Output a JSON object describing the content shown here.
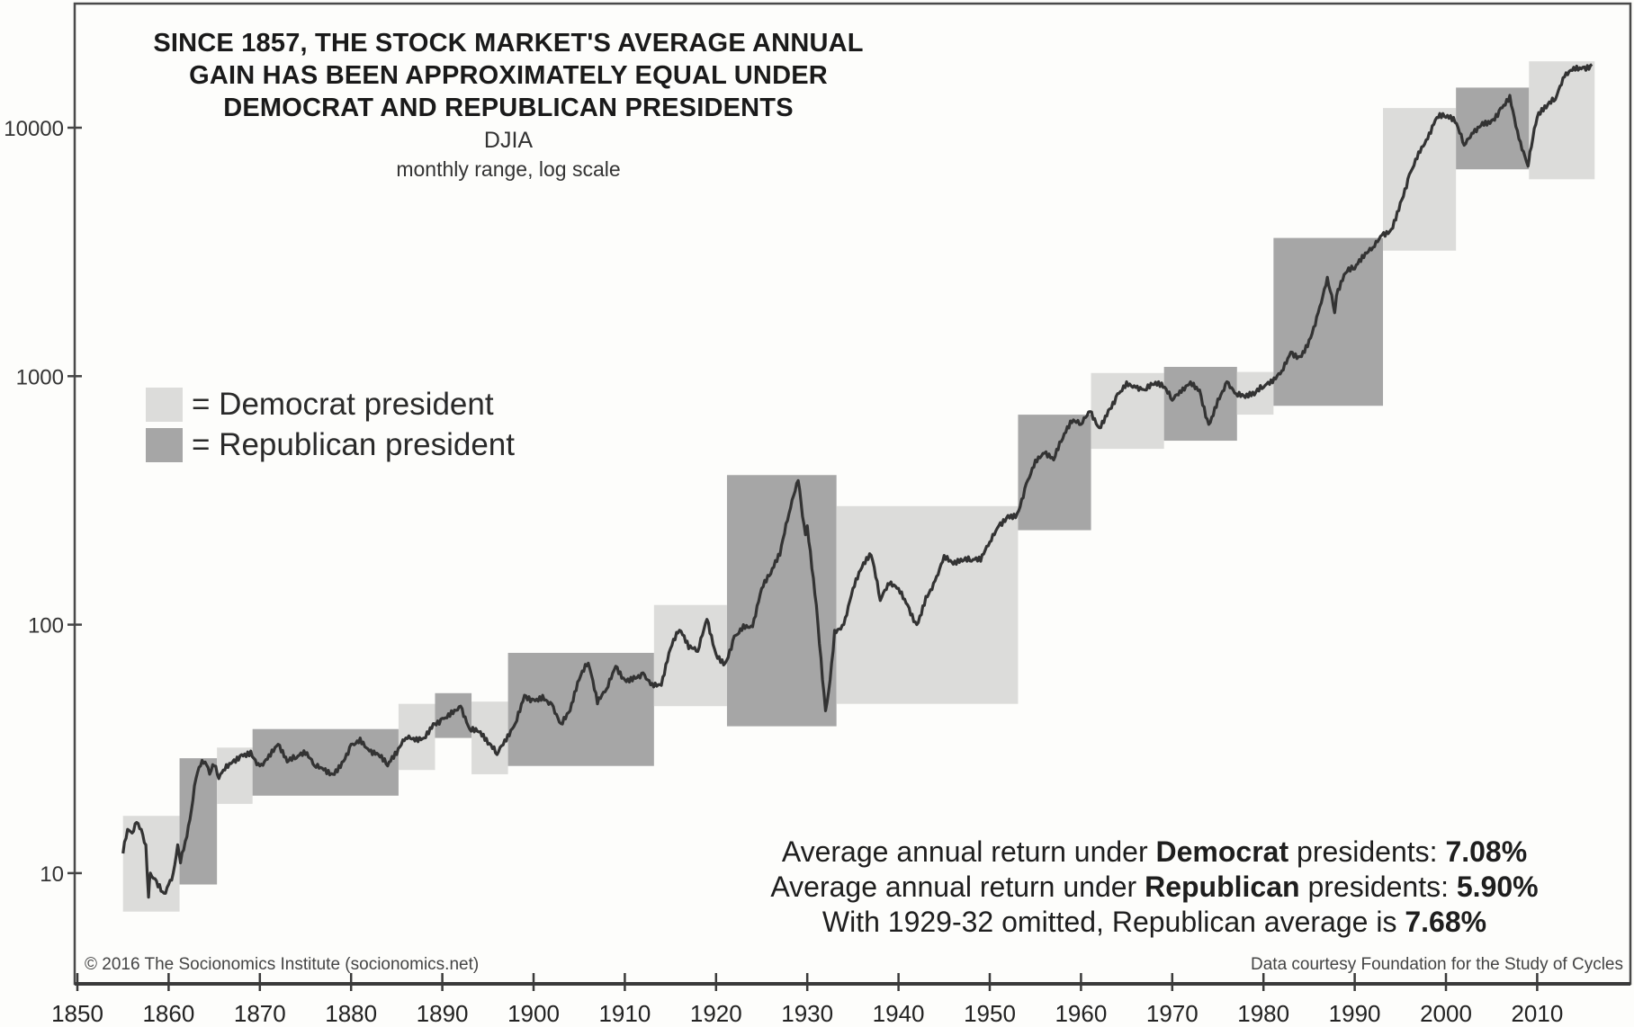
{
  "chart_data": {
    "type": "line",
    "title": "SINCE 1857, THE STOCK MARKET'S AVERAGE ANNUAL GAIN HAS BEEN APPROXIMATELY EQUAL UNDER DEMOCRAT AND REPUBLICAN PRESIDENTS",
    "title_lines": [
      "SINCE 1857, THE STOCK MARKET'S AVERAGE ANNUAL",
      "GAIN HAS BEEN APPROXIMATELY EQUAL UNDER",
      "DEMOCRAT AND REPUBLICAN PRESIDENTS"
    ],
    "subtitle": "DJIA",
    "subtitle2": "monthly range, log scale",
    "xlabel": "",
    "ylabel": "",
    "y_scale": "log",
    "ylim": [
      4,
      22000
    ],
    "xlim": [
      1850,
      2017
    ],
    "grid": false,
    "y_ticks": [
      {
        "value": 10,
        "label": "10"
      },
      {
        "value": 100,
        "label": "100"
      },
      {
        "value": 1000,
        "label": "1000"
      },
      {
        "value": 10000,
        "label": "10000"
      }
    ],
    "x_ticks": [
      {
        "value": 1850,
        "label": "1850"
      },
      {
        "value": 1860,
        "label": "1860"
      },
      {
        "value": 1870,
        "label": "1870"
      },
      {
        "value": 1880,
        "label": "1880"
      },
      {
        "value": 1890,
        "label": "1890"
      },
      {
        "value": 1900,
        "label": "1900"
      },
      {
        "value": 1910,
        "label": "1910"
      },
      {
        "value": 1920,
        "label": "1920"
      },
      {
        "value": 1930,
        "label": "1930"
      },
      {
        "value": 1940,
        "label": "1940"
      },
      {
        "value": 1950,
        "label": "1950"
      },
      {
        "value": 1960,
        "label": "1960"
      },
      {
        "value": 1970,
        "label": "1970"
      },
      {
        "value": 1980,
        "label": "1980"
      },
      {
        "value": 1990,
        "label": "1990"
      },
      {
        "value": 2000,
        "label": "2000"
      },
      {
        "value": 2010,
        "label": "2010"
      }
    ],
    "legend": {
      "placement": "middle-left",
      "entries": [
        {
          "label": "= Democrat president",
          "party": "D",
          "color": "#dcdcda"
        },
        {
          "label": "= Republican president",
          "party": "R",
          "color": "#a6a6a6"
        }
      ]
    },
    "presidential_terms": [
      {
        "start": 1855,
        "end": 1861.2,
        "party": "D",
        "low": 7,
        "high": 17
      },
      {
        "start": 1861.2,
        "end": 1865.3,
        "party": "R",
        "low": 9,
        "high": 29
      },
      {
        "start": 1865.3,
        "end": 1869.2,
        "party": "D",
        "low": 19,
        "high": 32
      },
      {
        "start": 1869.2,
        "end": 1885.2,
        "party": "R",
        "low": 20.5,
        "high": 38
      },
      {
        "start": 1885.2,
        "end": 1889.2,
        "party": "D",
        "low": 26,
        "high": 48
      },
      {
        "start": 1889.2,
        "end": 1893.2,
        "party": "R",
        "low": 35,
        "high": 53
      },
      {
        "start": 1893.2,
        "end": 1897.2,
        "party": "D",
        "low": 25,
        "high": 49
      },
      {
        "start": 1897.2,
        "end": 1913.2,
        "party": "R",
        "low": 27,
        "high": 77
      },
      {
        "start": 1913.2,
        "end": 1921.2,
        "party": "D",
        "low": 47,
        "high": 120
      },
      {
        "start": 1921.2,
        "end": 1933.2,
        "party": "R",
        "low": 39,
        "high": 400
      },
      {
        "start": 1933.2,
        "end": 1953.1,
        "party": "D",
        "low": 48,
        "high": 300
      },
      {
        "start": 1953.1,
        "end": 1961.1,
        "party": "R",
        "low": 240,
        "high": 700
      },
      {
        "start": 1961.1,
        "end": 1969.1,
        "party": "D",
        "low": 510,
        "high": 1030
      },
      {
        "start": 1969.1,
        "end": 1977.1,
        "party": "R",
        "low": 550,
        "high": 1090
      },
      {
        "start": 1977.1,
        "end": 1981.1,
        "party": "D",
        "low": 700,
        "high": 1040
      },
      {
        "start": 1981.1,
        "end": 1993.1,
        "party": "R",
        "low": 760,
        "high": 3600
      },
      {
        "start": 1993.1,
        "end": 2001.1,
        "party": "D",
        "low": 3200,
        "high": 12000
      },
      {
        "start": 2001.1,
        "end": 2009.1,
        "party": "R",
        "low": 6800,
        "high": 14500
      },
      {
        "start": 2009.1,
        "end": 2016.3,
        "party": "D",
        "low": 6200,
        "high": 18500
      }
    ],
    "series": [
      {
        "name": "DJIA",
        "x": [
          1855,
          1855.5,
          1856,
          1856.5,
          1857,
          1857.5,
          1857.8,
          1858,
          1858.5,
          1859,
          1859.5,
          1860,
          1860.5,
          1861,
          1861.3,
          1862,
          1862.5,
          1863,
          1863.5,
          1864,
          1864.5,
          1865,
          1865.5,
          1866,
          1867,
          1868,
          1869,
          1870,
          1871,
          1872,
          1873,
          1874,
          1875,
          1876,
          1877,
          1878,
          1879,
          1880,
          1881,
          1882,
          1883,
          1884,
          1885,
          1886,
          1887,
          1888,
          1889,
          1890,
          1891,
          1892,
          1893,
          1894,
          1895,
          1896,
          1897,
          1898,
          1899,
          1900,
          1901,
          1902,
          1903,
          1904,
          1905,
          1906,
          1907,
          1908,
          1909,
          1910,
          1911,
          1912,
          1913,
          1914,
          1915,
          1916,
          1917,
          1918,
          1919,
          1920,
          1921,
          1922,
          1923,
          1924,
          1925,
          1926,
          1927,
          1928,
          1929,
          1929.8,
          1930,
          1931,
          1932,
          1932.5,
          1933,
          1934,
          1935,
          1936,
          1937,
          1938,
          1939,
          1940,
          1941,
          1942,
          1943,
          1944,
          1945,
          1946,
          1947,
          1948,
          1949,
          1950,
          1951,
          1952,
          1953,
          1954,
          1955,
          1956,
          1957,
          1958,
          1959,
          1960,
          1961,
          1962,
          1963,
          1964,
          1965,
          1966,
          1967,
          1968,
          1969,
          1970,
          1971,
          1972,
          1973,
          1974,
          1975,
          1976,
          1977,
          1978,
          1979,
          1980,
          1981,
          1982,
          1983,
          1984,
          1985,
          1986,
          1987,
          1987.8,
          1988,
          1989,
          1990,
          1991,
          1992,
          1993,
          1994,
          1995,
          1996,
          1997,
          1998,
          1999,
          2000,
          2001,
          2002,
          2003,
          2004,
          2005,
          2006,
          2007,
          2008,
          2009,
          2009.2,
          2010,
          2011,
          2012,
          2013,
          2014,
          2015,
          2016
        ],
        "values": [
          12,
          15,
          14.5,
          16,
          15,
          13,
          8,
          10,
          9.5,
          9,
          8.3,
          9,
          10,
          13,
          11,
          14,
          18,
          24,
          27,
          28,
          25,
          27,
          24,
          26,
          28,
          30,
          31,
          27,
          30,
          33,
          28,
          29,
          30,
          27,
          26,
          25,
          28,
          33,
          35,
          31,
          30,
          27,
          30,
          35,
          34,
          35,
          40,
          42,
          45,
          47,
          38,
          37,
          33,
          30,
          34,
          40,
          52,
          50,
          52,
          48,
          40,
          45,
          60,
          70,
          48,
          55,
          68,
          60,
          62,
          64,
          58,
          57,
          80,
          95,
          80,
          78,
          105,
          76,
          70,
          90,
          100,
          98,
          140,
          160,
          190,
          280,
          380,
          230,
          250,
          120,
          45,
          60,
          95,
          100,
          140,
          170,
          190,
          125,
          145,
          140,
          120,
          100,
          130,
          150,
          190,
          175,
          180,
          180,
          180,
          215,
          250,
          275,
          280,
          370,
          460,
          490,
          460,
          560,
          650,
          640,
          720,
          620,
          730,
          850,
          950,
          900,
          880,
          925,
          900,
          800,
          860,
          950,
          880,
          640,
          810,
          950,
          850,
          820,
          840,
          900,
          940,
          1050,
          1250,
          1200,
          1400,
          1800,
          2500,
          1800,
          2100,
          2600,
          2700,
          3000,
          3300,
          3700,
          3900,
          5000,
          6500,
          8000,
          9000,
          11000,
          11000,
          10500,
          8500,
          9500,
          10500,
          10700,
          12000,
          13500,
          9000,
          7000,
          8000,
          11000,
          12000,
          13000,
          16000,
          17500,
          17500,
          18000
        ]
      }
    ]
  },
  "annotations": {
    "stat_democrat": {
      "prefix": "Average annual return under ",
      "party": "Democrat",
      "suffix": " presidents: ",
      "value": "7.08%"
    },
    "stat_republican": {
      "prefix": "Average annual return under ",
      "party": "Republican",
      "suffix": " presidents: ",
      "value": "5.90%"
    },
    "stat_omitted": {
      "prefix": "With 1929-32 omitted, Republican average is ",
      "value": "7.68%"
    }
  },
  "credits": {
    "left": "© 2016 The Socionomics Institute (socionomics.net)",
    "right": "Data courtesy Foundation for the Study of Cycles"
  },
  "colors": {
    "democrat": "#dcdcda",
    "republican": "#a6a6a6",
    "line": "#333333",
    "axis": "#444444",
    "background": "#fdfdfb"
  }
}
